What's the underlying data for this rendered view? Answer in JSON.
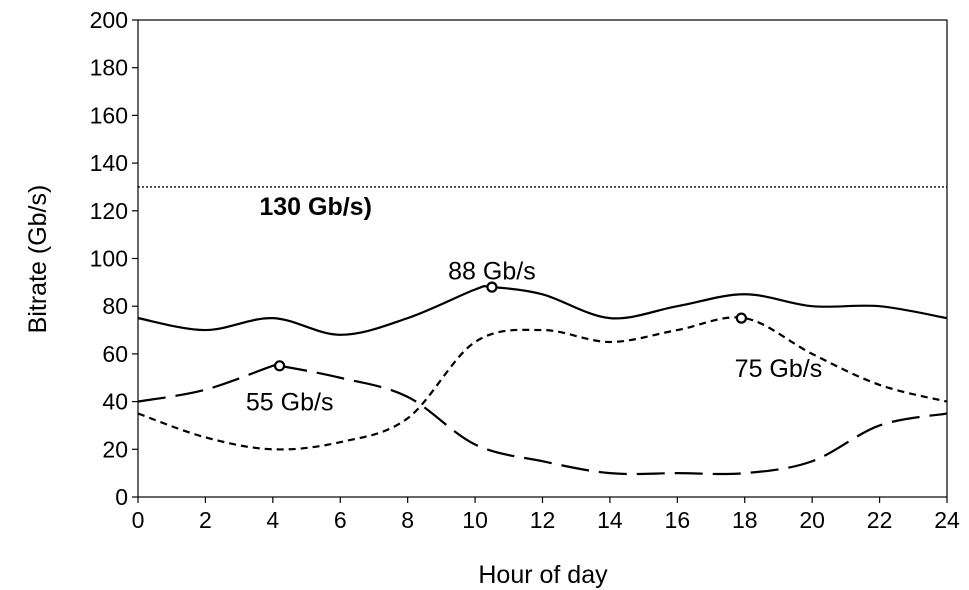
{
  "chart_data": {
    "type": "line",
    "xlabel": "Hour of day",
    "ylabel": "Bitrate (Gb/s)",
    "xlim": [
      0,
      24
    ],
    "ylim": [
      0,
      200
    ],
    "x_ticks": [
      0,
      2,
      4,
      6,
      8,
      10,
      12,
      14,
      16,
      18,
      20,
      22,
      24
    ],
    "y_ticks": [
      0,
      20,
      40,
      60,
      80,
      100,
      120,
      140,
      160,
      180,
      200
    ],
    "grid": false,
    "series": [
      {
        "style": "solid",
        "x": [
          0,
          2,
          4,
          6,
          8,
          10,
          10.5,
          12,
          14,
          16,
          18,
          20,
          22,
          24
        ],
        "y": [
          75,
          70,
          75,
          68,
          75,
          87,
          88,
          85,
          75,
          80,
          85,
          80,
          80,
          75
        ]
      },
      {
        "style": "long-dash",
        "x": [
          0,
          2,
          4,
          4.2,
          6,
          8,
          10,
          12,
          14,
          16,
          18,
          20,
          22,
          24
        ],
        "y": [
          40,
          45,
          55,
          55,
          50,
          42,
          22,
          15,
          10,
          10,
          10,
          15,
          30,
          35
        ]
      },
      {
        "style": "short-dash",
        "x": [
          0,
          2,
          4,
          6,
          8,
          10,
          12,
          14,
          16,
          18,
          20,
          22,
          24
        ],
        "y": [
          35,
          25,
          20,
          23,
          33,
          65,
          70,
          65,
          70,
          75,
          60,
          47,
          40
        ]
      },
      {
        "style": "dotted",
        "x": [
          0,
          24
        ],
        "y": [
          130,
          130
        ]
      }
    ],
    "markers": [
      {
        "x": 10.5,
        "y": 88
      },
      {
        "x": 4.2,
        "y": 55
      },
      {
        "x": 17.9,
        "y": 75
      }
    ],
    "annotations": [
      {
        "text": "88 Gb/s",
        "x": 10.5,
        "y": 95,
        "bold": false
      },
      {
        "text": "55 Gb/s",
        "x": 4.5,
        "y": 40,
        "bold": false
      },
      {
        "text": "75 Gb/s",
        "x": 19,
        "y": 54,
        "bold": false
      },
      {
        "text": "130 Gb/s)",
        "x": 3.6,
        "y": 122,
        "bold": true
      }
    ]
  }
}
